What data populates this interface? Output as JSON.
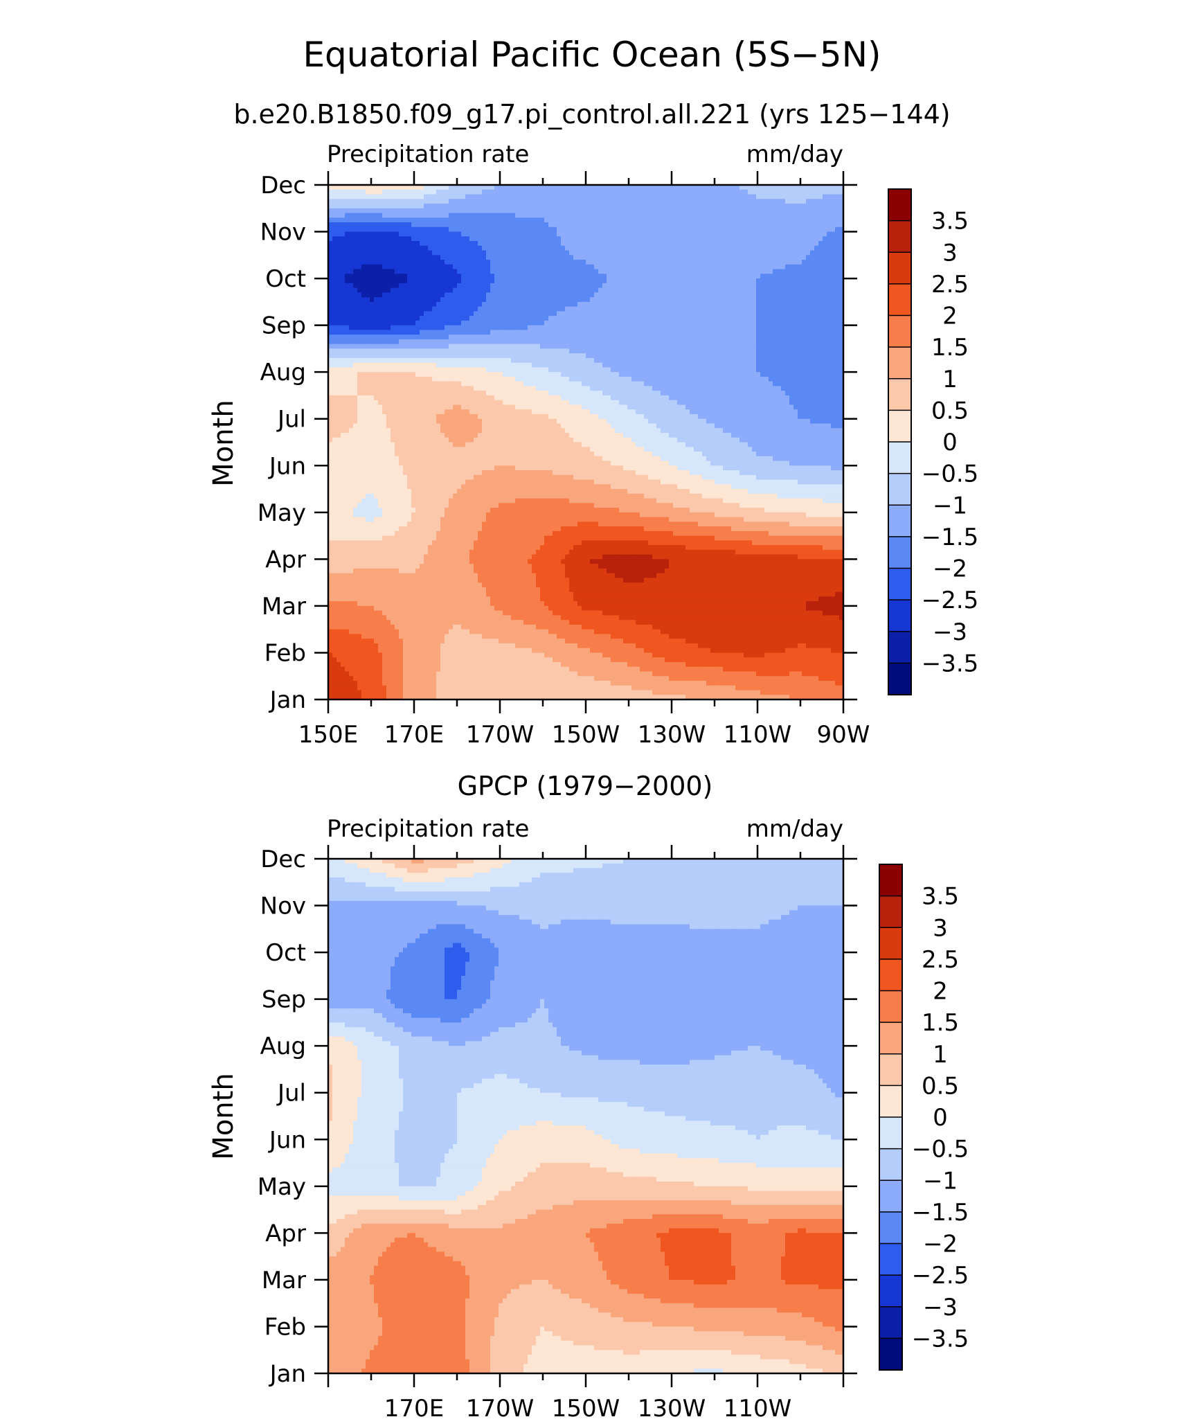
{
  "title": "Equatorial Pacific Ocean (5S−5N)",
  "chart_data": [
    {
      "type": "heatmap",
      "title": "b.e20.B1850.f09_g17.pi_control.all.221 (yrs 125−144)",
      "left_label": "Precipitation rate",
      "right_label": "mm/day",
      "ylabel": "Month",
      "x_tick_labels": [
        "150E",
        "170E",
        "170W",
        "150W",
        "130W",
        "110W",
        "90W"
      ],
      "x_tick_values": [
        150,
        170,
        190,
        210,
        230,
        250,
        270
      ],
      "x": [
        150,
        160,
        170,
        180,
        190,
        200,
        210,
        220,
        230,
        240,
        250,
        260,
        270
      ],
      "y_tick_labels": [
        "Jan",
        "Feb",
        "Mar",
        "Apr",
        "May",
        "Jun",
        "Jul",
        "Aug",
        "Sep",
        "Oct",
        "Nov",
        "Dec"
      ],
      "xlim": [
        150,
        270
      ],
      "ylim": [
        1,
        12
      ],
      "z": [
        [
          3.0,
          2.4,
          1.2,
          0.8,
          0.6,
          0.5,
          0.6,
          0.7,
          0.9,
          1.0,
          1.3,
          1.5,
          1.8
        ],
        [
          2.5,
          2.2,
          1.3,
          0.8,
          0.8,
          1.0,
          1.4,
          1.8,
          2.3,
          2.5,
          2.6,
          2.4,
          2.5
        ],
        [
          1.6,
          1.5,
          1.2,
          1.1,
          1.6,
          2.0,
          2.6,
          2.8,
          2.9,
          2.9,
          3.0,
          3.0,
          3.2
        ],
        [
          0.7,
          0.9,
          0.9,
          1.4,
          1.8,
          2.1,
          3.0,
          3.2,
          3.0,
          2.9,
          2.7,
          2.6,
          2.5
        ],
        [
          0.2,
          -0.2,
          0.5,
          1.2,
          1.6,
          1.8,
          1.7,
          1.5,
          1.2,
          0.9,
          0.6,
          0.4,
          0.3
        ],
        [
          0.3,
          0.3,
          0.6,
          0.8,
          1.0,
          0.9,
          0.7,
          0.4,
          0.0,
          -0.5,
          -0.9,
          -1.0,
          -1.1
        ],
        [
          0.7,
          0.4,
          0.7,
          1.3,
          0.8,
          0.6,
          0.2,
          -0.3,
          -0.8,
          -1.1,
          -1.3,
          -1.5,
          -1.6
        ],
        [
          0.3,
          0.6,
          0.5,
          0.3,
          0.0,
          -0.4,
          -0.8,
          -1.1,
          -1.3,
          -1.4,
          -1.5,
          -1.6,
          -1.9
        ],
        [
          -2.5,
          -2.8,
          -2.5,
          -2.0,
          -1.7,
          -1.5,
          -1.4,
          -1.4,
          -1.4,
          -1.4,
          -1.5,
          -1.7,
          -2.0
        ],
        [
          -2.9,
          -3.2,
          -3.0,
          -2.6,
          -1.9,
          -1.6,
          -1.6,
          -1.4,
          -1.4,
          -1.4,
          -1.5,
          -1.6,
          -1.9
        ],
        [
          -2.4,
          -2.6,
          -2.4,
          -2.0,
          -1.8,
          -1.6,
          -1.3,
          -1.3,
          -1.3,
          -1.3,
          -1.3,
          -1.3,
          -1.6
        ],
        [
          0.2,
          0.5,
          0.3,
          -0.6,
          -1.0,
          -1.2,
          -1.2,
          -1.2,
          -1.2,
          -1.1,
          -0.9,
          -0.8,
          -0.9
        ]
      ],
      "colorbar_labels": [
        "3.5",
        "3",
        "2.5",
        "2",
        "1.5",
        "1",
        "0.5",
        "0",
        "−0.5",
        "−1",
        "−1.5",
        "−2",
        "−2.5",
        "−3",
        "−3.5"
      ],
      "levels": [
        3.5,
        3,
        2.5,
        2,
        1.5,
        1,
        0.5,
        0,
        -0.5,
        -1,
        -1.5,
        -2,
        -2.5,
        -3,
        -3.5
      ]
    },
    {
      "type": "heatmap",
      "title": "GPCP (1979−2000)",
      "left_label": "Precipitation rate",
      "right_label": "mm/day",
      "ylabel": "Month",
      "x_tick_labels": [
        "170E",
        "170W",
        "150W",
        "130W",
        "110W"
      ],
      "x_tick_values": [
        170,
        190,
        210,
        230,
        250
      ],
      "x": [
        150,
        160,
        170,
        180,
        190,
        200,
        210,
        220,
        230,
        240,
        250,
        260,
        270
      ],
      "y_tick_labels": [
        "Jan",
        "Feb",
        "Mar",
        "Apr",
        "May",
        "Jun",
        "Jul",
        "Aug",
        "Sep",
        "Oct",
        "Nov",
        "Dec"
      ],
      "xlim": [
        150,
        270
      ],
      "ylim": [
        1,
        12
      ],
      "z": [
        [
          1.1,
          1.6,
          1.5,
          1.8,
          0.7,
          0.3,
          0.2,
          0.2,
          0.0,
          -0.1,
          0.1,
          0.3,
          0.6
        ],
        [
          1.2,
          1.4,
          1.8,
          1.6,
          0.9,
          0.5,
          0.7,
          0.9,
          1.0,
          1.1,
          1.2,
          1.3,
          1.6
        ],
        [
          1.3,
          1.5,
          1.9,
          1.7,
          1.1,
          1.0,
          1.3,
          1.7,
          2.0,
          2.1,
          1.9,
          2.1,
          2.1
        ],
        [
          0.6,
          1.4,
          1.5,
          1.2,
          1.1,
          1.3,
          1.5,
          1.8,
          2.1,
          2.1,
          1.8,
          2.1,
          2.0
        ],
        [
          -0.2,
          -0.3,
          -0.6,
          -0.4,
          0.4,
          0.7,
          0.8,
          0.7,
          0.6,
          0.5,
          0.4,
          0.3,
          0.3
        ],
        [
          0.5,
          -0.4,
          -0.6,
          -0.5,
          0.0,
          0.3,
          0.2,
          -0.2,
          -0.3,
          -0.4,
          -0.5,
          -0.4,
          -0.5
        ],
        [
          0.6,
          -0.2,
          -0.6,
          -0.5,
          -0.3,
          -0.5,
          -0.6,
          -0.6,
          -0.7,
          -0.7,
          -0.6,
          -0.7,
          -1.1
        ],
        [
          0.5,
          -0.2,
          -0.7,
          -1.0,
          -0.8,
          -0.9,
          -1.1,
          -1.2,
          -1.2,
          -1.1,
          -1.0,
          -1.2,
          -1.3
        ],
        [
          -1.5,
          -1.2,
          -2.0,
          -2.0,
          -1.3,
          -1.0,
          -1.3,
          -1.3,
          -1.4,
          -1.3,
          -1.1,
          -1.3,
          -1.4
        ],
        [
          -1.5,
          -1.3,
          -1.6,
          -2.2,
          -1.5,
          -1.1,
          -1.3,
          -1.3,
          -1.4,
          -1.2,
          -1.1,
          -1.2,
          -1.5
        ],
        [
          -1.1,
          -1.2,
          -1.2,
          -1.1,
          -0.9,
          -0.9,
          -0.9,
          -0.8,
          -0.7,
          -0.8,
          -0.9,
          -1.0,
          -1.0
        ],
        [
          -0.2,
          0.4,
          1.2,
          0.8,
          0.2,
          -0.3,
          -0.4,
          -0.5,
          -0.6,
          -0.6,
          -0.6,
          -0.6,
          -0.6
        ]
      ],
      "colorbar_labels": [
        "3.5",
        "3",
        "2.5",
        "2",
        "1.5",
        "1",
        "0.5",
        "0",
        "−0.5",
        "−1",
        "−1.5",
        "−2",
        "−2.5",
        "−3",
        "−3.5"
      ],
      "levels": [
        3.5,
        3,
        2.5,
        2,
        1.5,
        1,
        0.5,
        0,
        -0.5,
        -1,
        -1.5,
        -2,
        -2.5,
        -3,
        -3.5
      ]
    }
  ],
  "colors": {
    "palette": [
      "#8b0000",
      "#b8210b",
      "#d93a0e",
      "#f0561f",
      "#f77e4a",
      "#f9a67c",
      "#fbc8ab",
      "#fde6d4",
      "#d6e6fb",
      "#b5cdfa",
      "#8cacfb",
      "#5a88f5",
      "#2e5cec",
      "#1637d3",
      "#0b1fa9",
      "#000b7c"
    ]
  }
}
